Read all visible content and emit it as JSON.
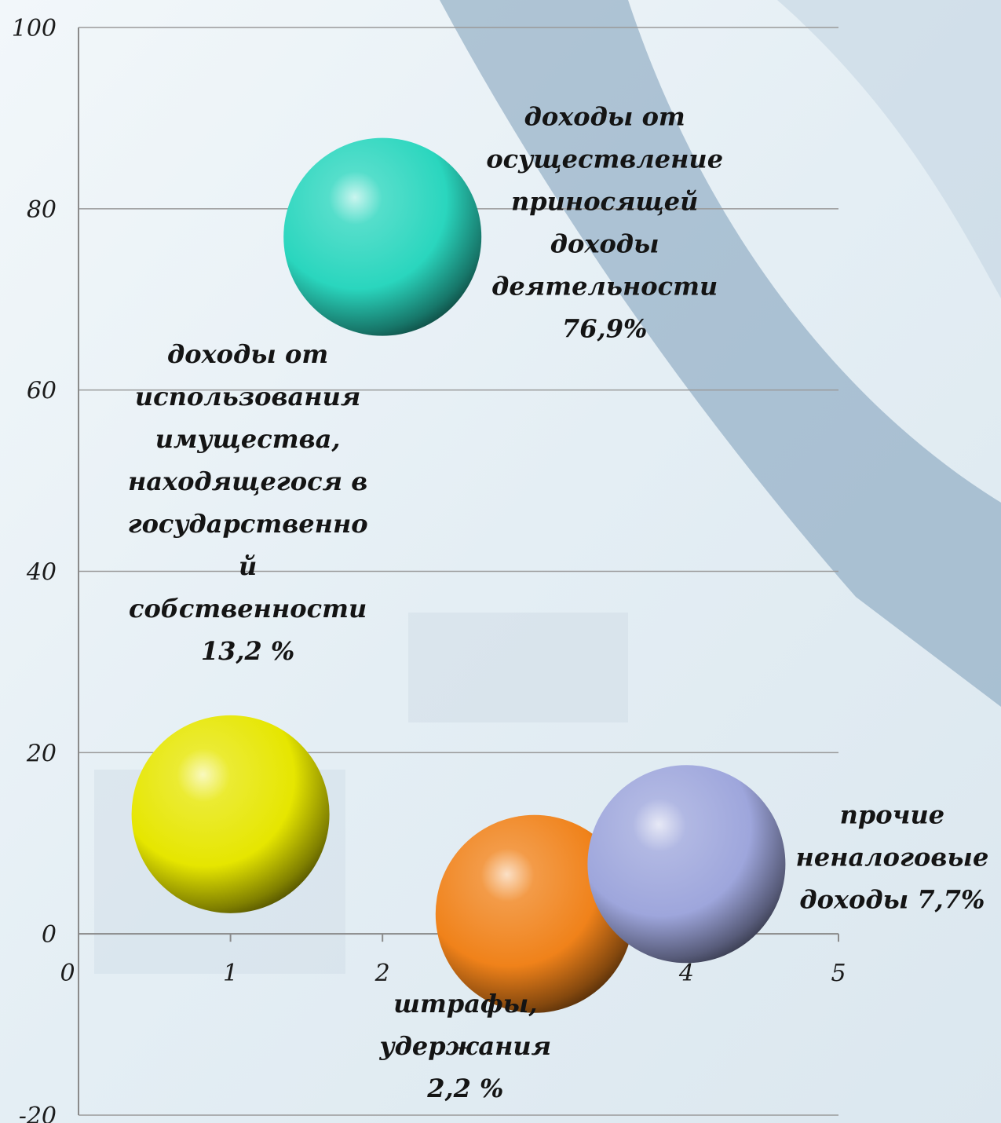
{
  "chart_data": {
    "type": "bubble",
    "xlim": [
      0,
      5
    ],
    "ylim": [
      -20,
      100
    ],
    "x_ticks": [
      "0",
      "1",
      "2",
      "3",
      "4",
      "5"
    ],
    "y_ticks": [
      "100",
      "80",
      "60",
      "40",
      "20",
      "0",
      "-20"
    ],
    "grid": true,
    "points": [
      {
        "x": 1,
        "y": 13.2,
        "color": "#e6e600",
        "label_lines": [
          "доходы от",
          "использования",
          "имущества,",
          "находящегося в",
          "государственно",
          "й",
          "собственности",
          "13,2 %"
        ]
      },
      {
        "x": 2,
        "y": 76.9,
        "color": "#2ad6be",
        "label_lines": [
          "доходы от",
          "осуществление",
          "приносящей",
          "доходы",
          "деятельности",
          "76,9%"
        ]
      },
      {
        "x": 3,
        "y": 2.2,
        "color": "#f0821a",
        "label_lines": [
          "штрафы,",
          "удержания",
          "2,2 %"
        ]
      },
      {
        "x": 4,
        "y": 7.7,
        "color": "#9ea6dc",
        "label_lines": [
          "прочие",
          "неналоговые",
          "доходы   7,7%"
        ]
      }
    ]
  }
}
